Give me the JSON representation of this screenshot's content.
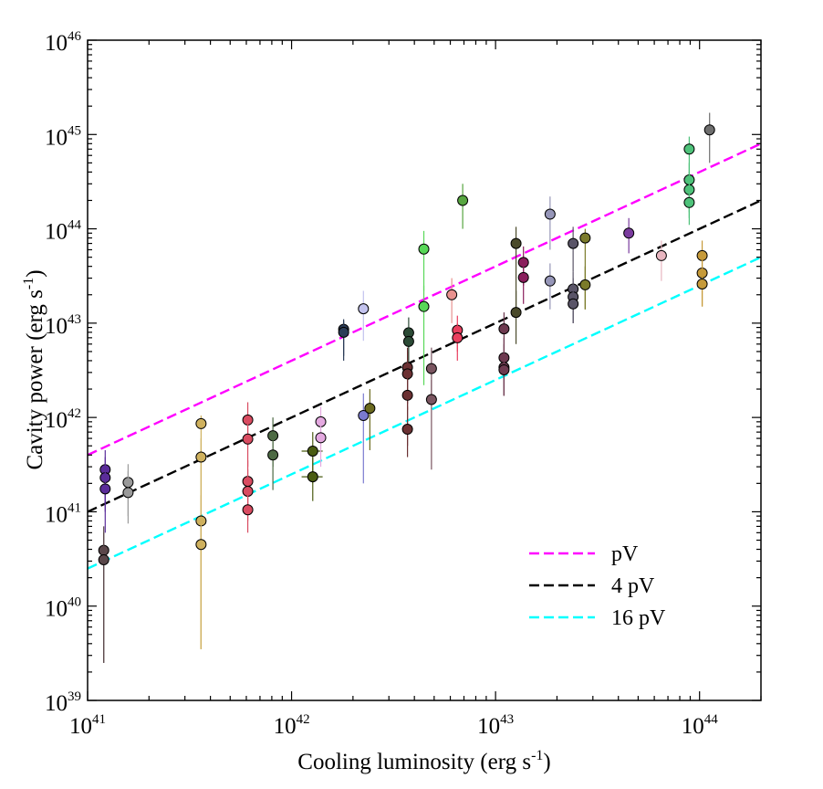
{
  "chart_data": {
    "type": "scatter",
    "xlabel": "Cooling luminosity (erg s",
    "xlabel_sup": "-1",
    "xlabel_end": ")",
    "ylabel": "Cavity power (erg s",
    "ylabel_sup": "-1",
    "ylabel_end": ")",
    "x_scale": "log",
    "y_scale": "log",
    "xlim": [
      1e+41,
      2e+44
    ],
    "ylim": [
      1e+39,
      1e+46
    ],
    "grid": false,
    "legend_placement": "lower-right",
    "x_ticks": [
      {
        "value": 1e+41,
        "base": "10",
        "exp": "41"
      },
      {
        "value": 1e+42,
        "base": "10",
        "exp": "42"
      },
      {
        "value": 1e+43,
        "base": "10",
        "exp": "43"
      },
      {
        "value": 1e+44,
        "base": "10",
        "exp": "44"
      }
    ],
    "y_ticks": [
      {
        "value": 1e+39,
        "base": "10",
        "exp": "39"
      },
      {
        "value": 1e+40,
        "base": "10",
        "exp": "40"
      },
      {
        "value": 1e+41,
        "base": "10",
        "exp": "41"
      },
      {
        "value": 1e+42,
        "base": "10",
        "exp": "42"
      },
      {
        "value": 1e+43,
        "base": "10",
        "exp": "43"
      },
      {
        "value": 1e+44,
        "base": "10",
        "exp": "44"
      },
      {
        "value": 1e+45,
        "base": "10",
        "exp": "45"
      },
      {
        "value": 1e+46,
        "base": "10",
        "exp": "46"
      }
    ],
    "lines": [
      {
        "name": "pV",
        "color": "#ff00ff",
        "x": [
          1e+41,
          2e+44
        ],
        "y": [
          4e+41,
          8e+44
        ]
      },
      {
        "name": "4 pV",
        "color": "#000000",
        "x": [
          1e+41,
          2e+44
        ],
        "y": [
          1e+41,
          2e+44
        ]
      },
      {
        "name": "16 pV",
        "color": "#00ffff",
        "x": [
          1e+41,
          2e+44
        ],
        "y": [
          2.5e+40,
          5e+43
        ]
      }
    ],
    "points": [
      {
        "x": 1.22e+41,
        "y": 2.8e+41,
        "ylo": 1.2e+41,
        "yhi": 4.5e+41,
        "color": "#5b2d9a"
      },
      {
        "x": 1.22e+41,
        "y": 2.3e+41,
        "ylo": 1e+41,
        "yhi": 3.8e+41,
        "color": "#5b2d9a"
      },
      {
        "x": 1.22e+41,
        "y": 1.75e+41,
        "ylo": 6e+40,
        "yhi": 3e+41,
        "color": "#5b2d9a"
      },
      {
        "x": 1.2e+41,
        "y": 3.9e+40,
        "ylo": 2.5e+39,
        "yhi": 7e+40,
        "color": "#5a474a"
      },
      {
        "x": 1.2e+41,
        "y": 3.1e+40,
        "ylo": 2.5e+39,
        "yhi": 6e+40,
        "color": "#5a474a"
      },
      {
        "x": 1.58e+41,
        "y": 2.05e+41,
        "ylo": 9e+40,
        "yhi": 3.2e+41,
        "color": "#9a9a9a"
      },
      {
        "x": 1.58e+41,
        "y": 1.6e+41,
        "ylo": 7.5e+40,
        "yhi": 2.7e+41,
        "color": "#9a9a9a"
      },
      {
        "x": 3.6e+41,
        "y": 8.6e+41,
        "ylo": 3.5e+39,
        "yhi": 1.05e+42,
        "color": "#cfb15e"
      },
      {
        "x": 3.6e+41,
        "y": 3.8e+41,
        "ylo": 3.5e+39,
        "yhi": 6e+41,
        "color": "#cfb15e"
      },
      {
        "x": 3.6e+41,
        "y": 8e+40,
        "ylo": 3.5e+39,
        "yhi": 1.5e+41,
        "color": "#cfb15e"
      },
      {
        "x": 3.6e+41,
        "y": 4.5e+40,
        "ylo": 3.5e+39,
        "yhi": 8e+40,
        "color": "#cfb15e"
      },
      {
        "x": 6.1e+41,
        "y": 9.4e+41,
        "ylo": 5e+41,
        "yhi": 1.45e+42,
        "color": "#d94c61"
      },
      {
        "x": 6.1e+41,
        "y": 5.9e+41,
        "ylo": 3e+41,
        "yhi": 9e+41,
        "color": "#d94c61"
      },
      {
        "x": 6.1e+41,
        "y": 2.1e+41,
        "ylo": 1e+41,
        "yhi": 3.5e+41,
        "color": "#d94c61"
      },
      {
        "x": 6.1e+41,
        "y": 1.65e+41,
        "ylo": 8e+40,
        "yhi": 2.8e+41,
        "color": "#d94c61"
      },
      {
        "x": 6.1e+41,
        "y": 1.05e+41,
        "ylo": 6e+40,
        "yhi": 1.8e+41,
        "color": "#d94c61"
      },
      {
        "x": 8.1e+41,
        "y": 6.4e+41,
        "ylo": 3e+41,
        "yhi": 1e+42,
        "color": "#4d6a44"
      },
      {
        "x": 8.1e+41,
        "y": 4e+41,
        "ylo": 1.7e+41,
        "yhi": 6.2e+41,
        "color": "#4d6a44"
      },
      {
        "x": 1.27e+42,
        "y": 4.4e+41,
        "ylo": 2e+41,
        "yhi": 7e+41,
        "color": "#4a5c12",
        "xlo": 1.12e+42,
        "xhi": 1.42e+42
      },
      {
        "x": 1.27e+42,
        "y": 2.35e+41,
        "ylo": 1.3e+41,
        "yhi": 3.8e+41,
        "color": "#4a5c12",
        "xlo": 1.12e+42,
        "xhi": 1.42e+42
      },
      {
        "x": 1.39e+42,
        "y": 9e+41,
        "ylo": 5e+41,
        "yhi": 1.3e+42,
        "color": "#e4a9e0"
      },
      {
        "x": 1.39e+42,
        "y": 6.1e+41,
        "ylo": 3e+41,
        "yhi": 9e+41,
        "color": "#e4a9e0"
      },
      {
        "x": 1.8e+42,
        "y": 8.6e+42,
        "ylo": 4e+42,
        "yhi": 1.1e+43,
        "color": "#2c3d58"
      },
      {
        "x": 1.8e+42,
        "y": 8e+42,
        "ylo": 4.5e+42,
        "yhi": 1.05e+43,
        "color": "#2c3d58"
      },
      {
        "x": 2.25e+42,
        "y": 1.42e+43,
        "ylo": 6.5e+42,
        "yhi": 2.2e+43,
        "color": "#c3c3ee"
      },
      {
        "x": 2.25e+42,
        "y": 1.05e+42,
        "ylo": 2e+41,
        "yhi": 1.8e+42,
        "color": "#7a7acf"
      },
      {
        "x": 2.42e+42,
        "y": 1.25e+42,
        "ylo": 4.5e+41,
        "yhi": 2e+42,
        "color": "#6b6a1f"
      },
      {
        "x": 3.75e+42,
        "y": 7.9e+42,
        "ylo": 3.8e+42,
        "yhi": 1.15e+43,
        "color": "#2b4a35"
      },
      {
        "x": 3.75e+42,
        "y": 6.4e+42,
        "ylo": 2.5e+42,
        "yhi": 9e+42,
        "color": "#2b4a35"
      },
      {
        "x": 3.7e+42,
        "y": 3.4e+42,
        "ylo": 1.4e+42,
        "yhi": 5.5e+42,
        "color": "#6b3133"
      },
      {
        "x": 3.7e+42,
        "y": 2.9e+42,
        "ylo": 1.2e+42,
        "yhi": 5e+42,
        "color": "#6b3133"
      },
      {
        "x": 3.7e+42,
        "y": 1.72e+42,
        "ylo": 5e+41,
        "yhi": 3e+42,
        "color": "#6b3133"
      },
      {
        "x": 3.7e+42,
        "y": 7.5e+41,
        "ylo": 3.8e+41,
        "yhi": 1.3e+42,
        "color": "#6b3133"
      },
      {
        "x": 4.45e+42,
        "y": 6.1e+43,
        "ylo": 2.2e+43,
        "yhi": 9.5e+43,
        "color": "#58d858"
      },
      {
        "x": 4.45e+42,
        "y": 1.5e+43,
        "ylo": 2.2e+42,
        "yhi": 2.5e+43,
        "color": "#58d858"
      },
      {
        "x": 4.85e+42,
        "y": 3.3e+42,
        "ylo": 1.5e+42,
        "yhi": 5.5e+42,
        "color": "#7a5560"
      },
      {
        "x": 4.85e+42,
        "y": 1.55e+42,
        "ylo": 2.8e+41,
        "yhi": 2.5e+42,
        "color": "#7a5560"
      },
      {
        "x": 6.9e+42,
        "y": 2e+44,
        "ylo": 1e+44,
        "yhi": 3e+44,
        "color": "#57a640"
      },
      {
        "x": 6.1e+42,
        "y": 2e+43,
        "ylo": 1e+43,
        "yhi": 3e+43,
        "color": "#e9928f"
      },
      {
        "x": 6.5e+42,
        "y": 8.4e+42,
        "ylo": 5e+42,
        "yhi": 1.2e+43,
        "color": "#e93f5f"
      },
      {
        "x": 6.5e+42,
        "y": 7e+42,
        "ylo": 4e+42,
        "yhi": 1e+43,
        "color": "#e93f5f"
      },
      {
        "x": 1.1e+43,
        "y": 8.7e+42,
        "ylo": 5e+42,
        "yhi": 1.3e+43,
        "color": "#6e3a50"
      },
      {
        "x": 1.1e+43,
        "y": 4.3e+42,
        "ylo": 1.7e+42,
        "yhi": 7e+42,
        "color": "#6e3a50"
      },
      {
        "x": 1.1e+43,
        "y": 3.4e+42,
        "ylo": 1.7e+42,
        "yhi": 6e+42,
        "color": "#6e3a50"
      },
      {
        "x": 1.1e+43,
        "y": 3.2e+42,
        "ylo": 1.7e+42,
        "yhi": 5e+42,
        "color": "#6e3a50"
      },
      {
        "x": 1.26e+43,
        "y": 7e+43,
        "ylo": 1.5e+43,
        "yhi": 1.05e+44,
        "color": "#4a4a2a"
      },
      {
        "x": 1.26e+43,
        "y": 1.3e+43,
        "ylo": 6e+42,
        "yhi": 2.2e+43,
        "color": "#4a4a2a"
      },
      {
        "x": 1.37e+43,
        "y": 4.4e+43,
        "ylo": 2.5e+43,
        "yhi": 6.5e+43,
        "color": "#8a1e5c"
      },
      {
        "x": 1.37e+43,
        "y": 3.05e+43,
        "ylo": 1.6e+43,
        "yhi": 4.8e+43,
        "color": "#8a1e5c"
      },
      {
        "x": 1.85e+43,
        "y": 1.43e+44,
        "ylo": 6e+43,
        "yhi": 2.2e+44,
        "color": "#9696b8"
      },
      {
        "x": 1.85e+43,
        "y": 2.8e+43,
        "ylo": 1.4e+43,
        "yhi": 4.3e+43,
        "color": "#9696b8"
      },
      {
        "x": 2.4e+43,
        "y": 7e+43,
        "ylo": 3.5e+43,
        "yhi": 1.05e+44,
        "color": "#5a5568"
      },
      {
        "x": 2.4e+43,
        "y": 2.3e+43,
        "ylo": 1e+43,
        "yhi": 3.5e+43,
        "color": "#5a5568"
      },
      {
        "x": 2.4e+43,
        "y": 1.9e+43,
        "ylo": 1e+43,
        "yhi": 3e+43,
        "color": "#5a5568"
      },
      {
        "x": 2.4e+43,
        "y": 1.6e+43,
        "ylo": 1e+43,
        "yhi": 2.5e+43,
        "color": "#5a5568"
      },
      {
        "x": 2.75e+43,
        "y": 8e+43,
        "ylo": 1.4e+43,
        "yhi": 1e+44,
        "color": "#7b7b2a"
      },
      {
        "x": 2.75e+43,
        "y": 2.55e+43,
        "ylo": 1.4e+43,
        "yhi": 4e+43,
        "color": "#7b7b2a"
      },
      {
        "x": 4.5e+43,
        "y": 9e+43,
        "ylo": 5.5e+43,
        "yhi": 1.3e+44,
        "color": "#7a3b9e"
      },
      {
        "x": 6.5e+43,
        "y": 5.2e+43,
        "ylo": 2.8e+43,
        "yhi": 7.5e+43,
        "color": "#e8b6c0"
      },
      {
        "x": 8.9e+43,
        "y": 7e+44,
        "ylo": 3e+44,
        "yhi": 9.5e+44,
        "color": "#4ec27a"
      },
      {
        "x": 8.9e+43,
        "y": 3.3e+44,
        "ylo": 1.5e+44,
        "yhi": 5e+44,
        "color": "#4ec27a"
      },
      {
        "x": 8.9e+43,
        "y": 2.6e+44,
        "ylo": 1.3e+44,
        "yhi": 4e+44,
        "color": "#4ec27a"
      },
      {
        "x": 8.9e+43,
        "y": 1.9e+44,
        "ylo": 1.1e+44,
        "yhi": 3e+44,
        "color": "#4ec27a"
      },
      {
        "x": 1.12e+44,
        "y": 1.12e+45,
        "ylo": 5e+44,
        "yhi": 1.7e+45,
        "color": "#6e6e6e"
      },
      {
        "x": 1.03e+44,
        "y": 5.2e+43,
        "ylo": 3e+43,
        "yhi": 7.5e+43,
        "color": "#c69a3a"
      },
      {
        "x": 1.03e+44,
        "y": 3.4e+43,
        "ylo": 1.5e+43,
        "yhi": 5e+43,
        "color": "#c69a3a"
      },
      {
        "x": 1.03e+44,
        "y": 2.6e+43,
        "ylo": 1.5e+43,
        "yhi": 4e+43,
        "color": "#c69a3a"
      }
    ]
  }
}
